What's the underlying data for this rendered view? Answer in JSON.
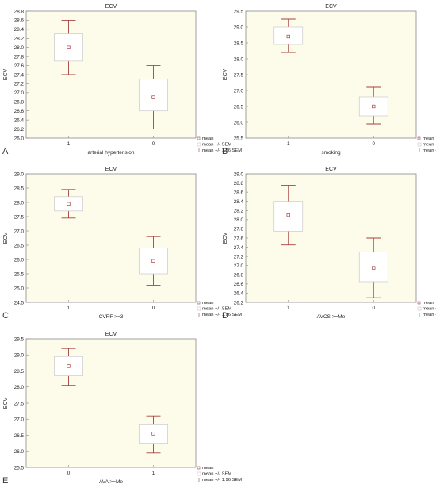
{
  "legend": {
    "mean": "mean",
    "sem": "mean +/- SEM",
    "ci": "mean +/- 1.96 SEM"
  },
  "colors": {
    "background": "#fdfbe9",
    "box_fill": "#ffffff",
    "box_stroke": "#c9c9c9",
    "whisker": "#a84040",
    "mean_marker": "#a84040",
    "text": "#222222"
  },
  "chart_data": [
    {
      "panel": "A",
      "type": "boxplot",
      "title": "ECV",
      "xlabel": "arterial hypertension",
      "ylabel": "ECV",
      "ylim": [
        26.0,
        28.8
      ],
      "yticks": [
        "26.0",
        "26.2",
        "26.4",
        "26.6",
        "26.8",
        "27.0",
        "27.2",
        "27.4",
        "27.6",
        "27.8",
        "28.0",
        "28.2",
        "28.4",
        "28.6",
        "28.8"
      ],
      "categories": [
        "1",
        "0"
      ],
      "series": [
        {
          "mean": 28.0,
          "sem_low": 27.7,
          "sem_high": 28.3,
          "ci_low": 27.4,
          "ci_high": 28.6
        },
        {
          "mean": 26.9,
          "sem_low": 26.6,
          "sem_high": 27.3,
          "ci_low": 26.2,
          "ci_high": 27.6
        }
      ]
    },
    {
      "panel": "B",
      "type": "boxplot",
      "title": "ECV",
      "xlabel": "smoking",
      "ylabel": "ECV",
      "ylim": [
        25.5,
        29.5
      ],
      "yticks": [
        "25.5",
        "26.0",
        "26.5",
        "27.0",
        "27.5",
        "28.0",
        "28.5",
        "29.0",
        "29.5"
      ],
      "categories": [
        "1",
        "0"
      ],
      "series": [
        {
          "mean": 28.7,
          "sem_low": 28.45,
          "sem_high": 29.0,
          "ci_low": 28.2,
          "ci_high": 29.25
        },
        {
          "mean": 26.5,
          "sem_low": 26.2,
          "sem_high": 26.8,
          "ci_low": 25.95,
          "ci_high": 27.1
        }
      ]
    },
    {
      "panel": "C",
      "type": "boxplot",
      "title": "ECV",
      "xlabel": "CVRF >=3",
      "ylabel": "ECV",
      "ylim": [
        24.5,
        29.0
      ],
      "yticks": [
        "24.5",
        "25.0",
        "25.5",
        "26.0",
        "26.5",
        "27.0",
        "27.5",
        "28.0",
        "28.5",
        "29.0"
      ],
      "categories": [
        "1",
        "0"
      ],
      "series": [
        {
          "mean": 27.95,
          "sem_low": 27.7,
          "sem_high": 28.2,
          "ci_low": 27.45,
          "ci_high": 28.45
        },
        {
          "mean": 25.95,
          "sem_low": 25.5,
          "sem_high": 26.4,
          "ci_low": 25.1,
          "ci_high": 26.8
        }
      ]
    },
    {
      "panel": "D",
      "type": "boxplot",
      "title": "ECV",
      "xlabel": "AVCS >=Me",
      "ylabel": "ECV",
      "ylim": [
        26.2,
        29.0
      ],
      "yticks": [
        "26.2",
        "26.4",
        "26.6",
        "26.8",
        "27.0",
        "27.2",
        "27.4",
        "27.6",
        "27.8",
        "28.0",
        "28.2",
        "28.4",
        "28.6",
        "28.8",
        "29.0"
      ],
      "categories": [
        "1",
        "0"
      ],
      "series": [
        {
          "mean": 28.1,
          "sem_low": 27.75,
          "sem_high": 28.4,
          "ci_low": 27.45,
          "ci_high": 28.75
        },
        {
          "mean": 26.95,
          "sem_low": 26.65,
          "sem_high": 27.3,
          "ci_low": 26.3,
          "ci_high": 27.6
        }
      ]
    },
    {
      "panel": "E",
      "type": "boxplot",
      "title": "ECV",
      "xlabel": "AVA >=Me",
      "ylabel": "ECV",
      "ylim": [
        25.5,
        29.5
      ],
      "yticks": [
        "25.5",
        "26.0",
        "26.5",
        "27.0",
        "27.5",
        "28.0",
        "28.5",
        "29.0",
        "29.5"
      ],
      "categories": [
        "0",
        "1"
      ],
      "series": [
        {
          "mean": 28.65,
          "sem_low": 28.35,
          "sem_high": 28.95,
          "ci_low": 28.05,
          "ci_high": 29.2
        },
        {
          "mean": 26.55,
          "sem_low": 26.25,
          "sem_high": 26.85,
          "ci_low": 25.95,
          "ci_high": 27.1
        }
      ]
    }
  ]
}
